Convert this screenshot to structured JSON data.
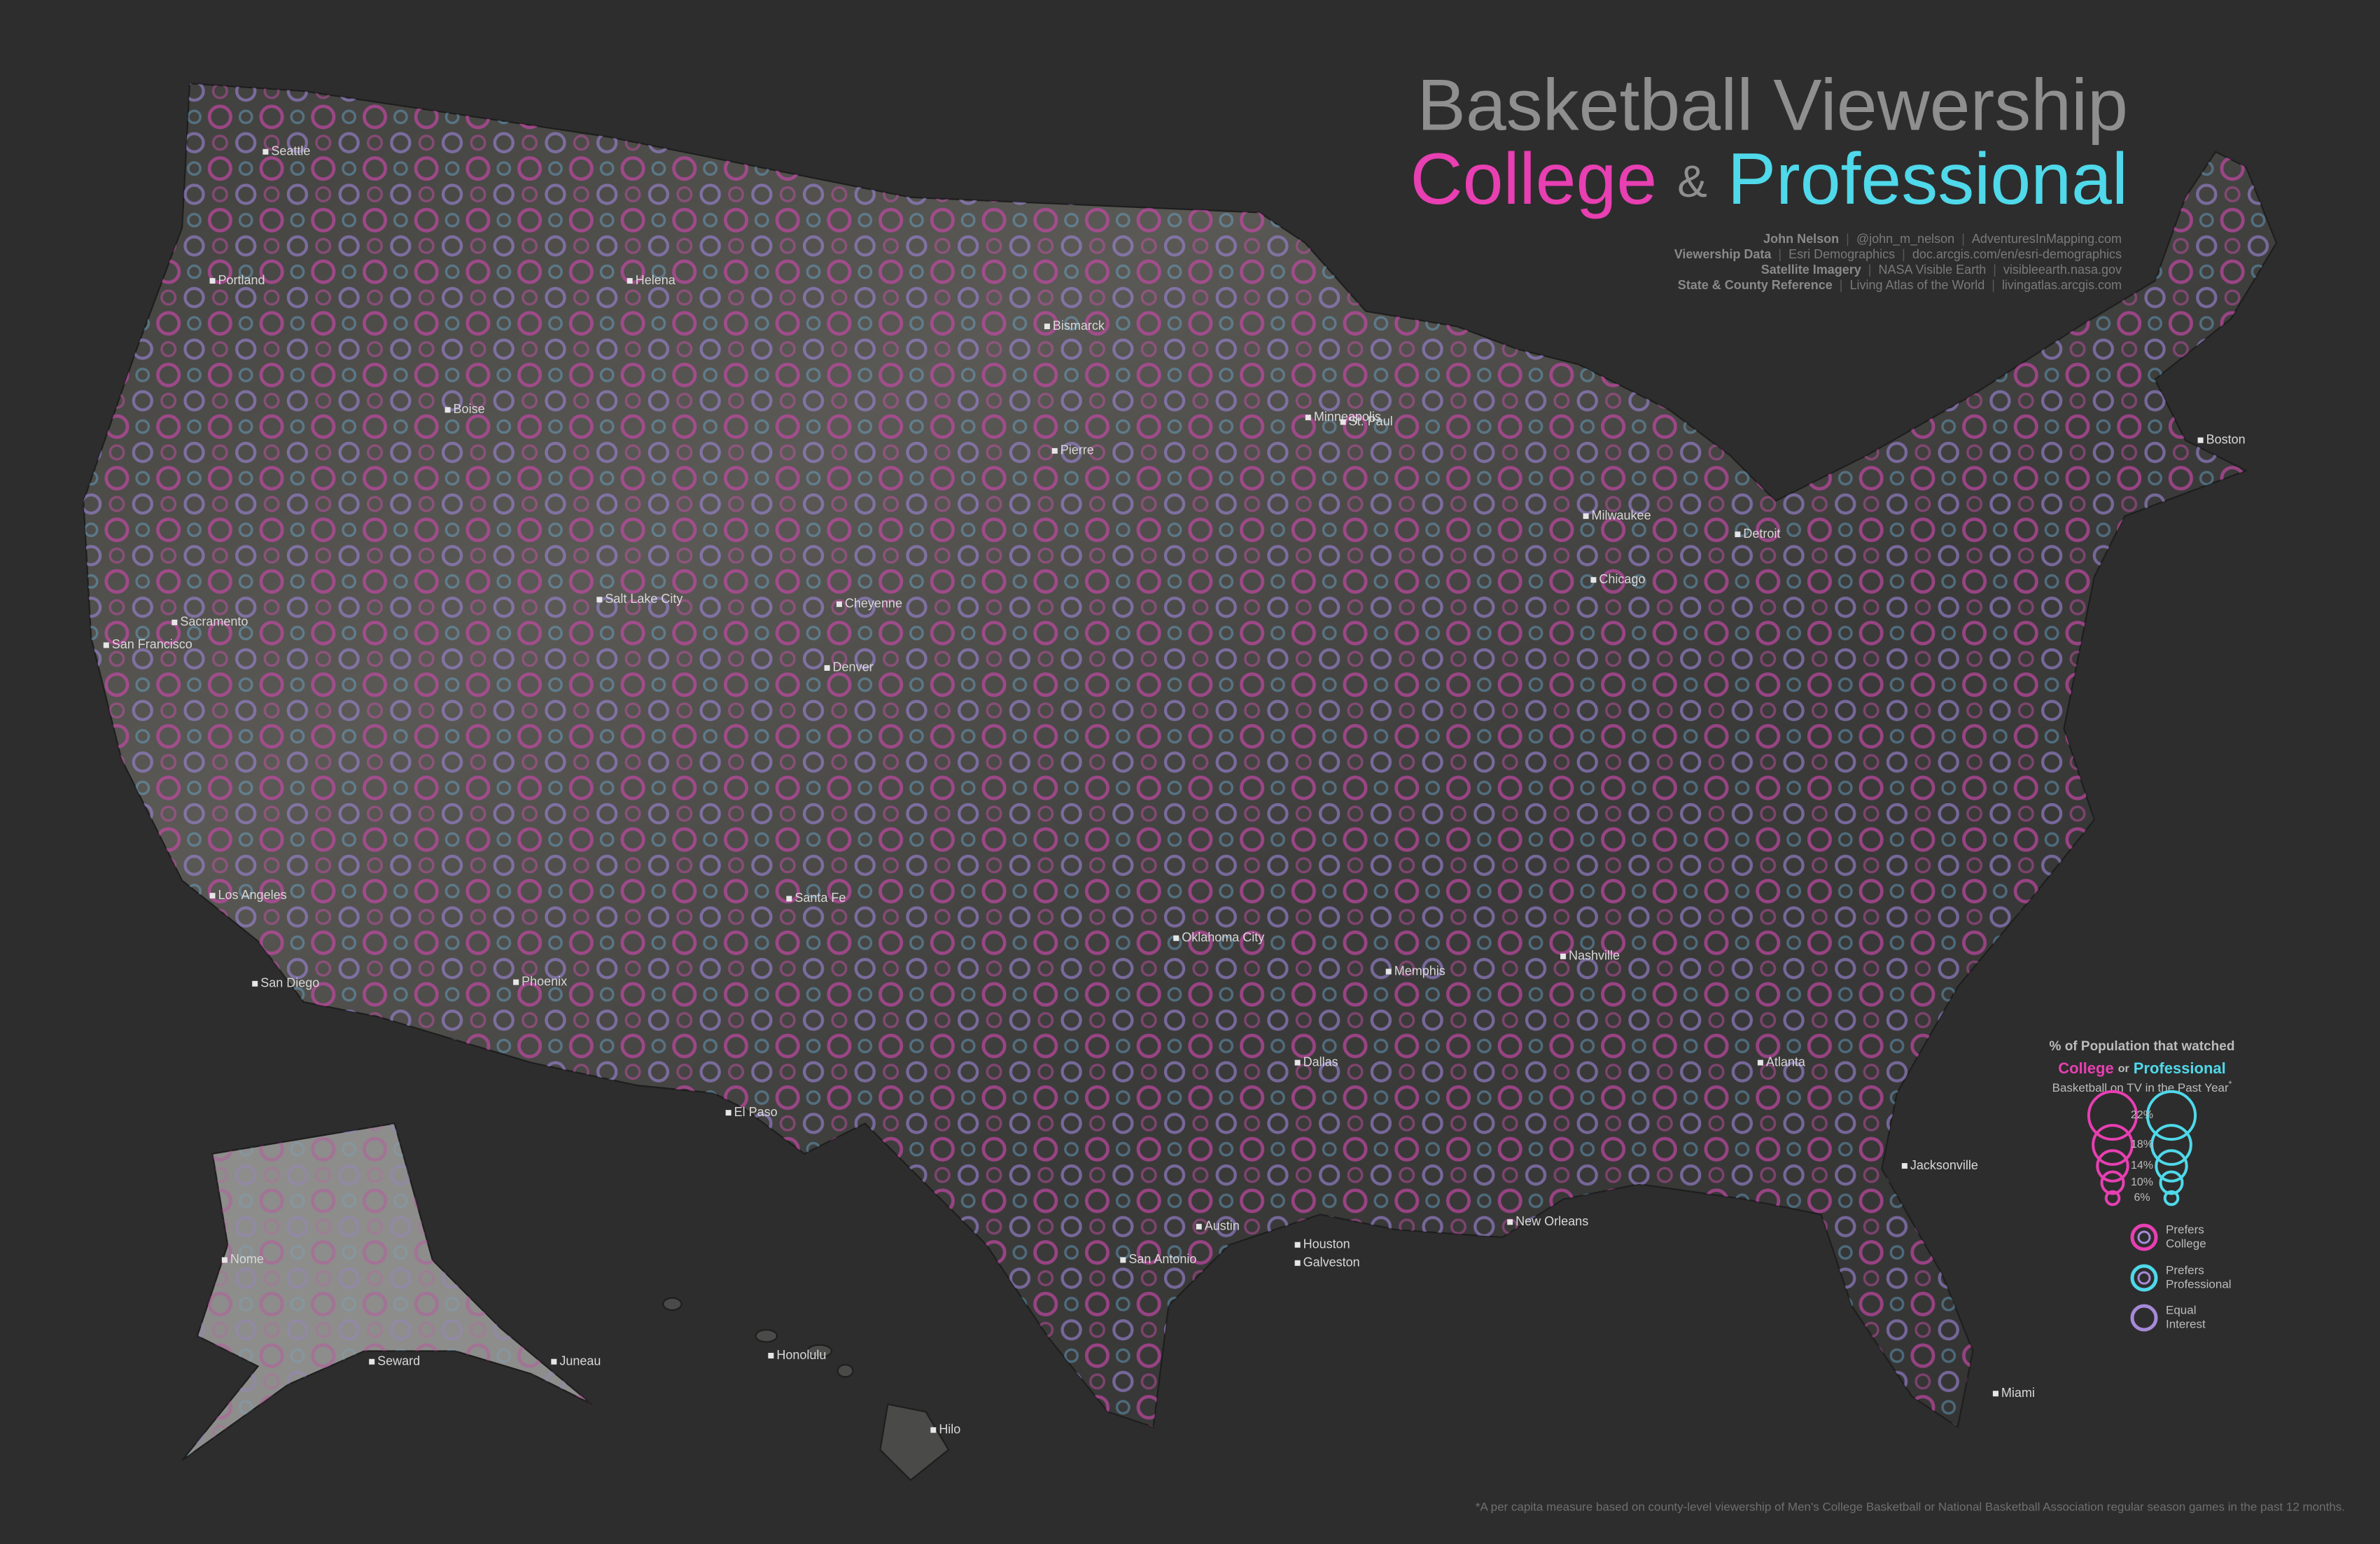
{
  "title": {
    "line1": "Basketball Viewership",
    "college": "College",
    "amp": "&",
    "professional": "Professional"
  },
  "credits": {
    "separator": "|",
    "lines": [
      {
        "label": "John Nelson",
        "items": [
          "@john_m_nelson",
          "AdventuresInMapping.com"
        ]
      },
      {
        "label": "Viewership Data",
        "items": [
          "Esri Demographics",
          "doc.arcgis.com/en/esri-demographics"
        ]
      },
      {
        "label": "Satellite Imagery",
        "items": [
          "NASA Visible Earth",
          "visibleearth.nasa.gov"
        ]
      },
      {
        "label": "State & County Reference",
        "items": [
          "Living Atlas of the World",
          "livingatlas.arcgis.com"
        ]
      }
    ]
  },
  "legend": {
    "heading": "% of Population that watched",
    "college": "College",
    "or": "or",
    "professional": "Professional",
    "subheading": "Basketball on TV in the Past Year",
    "asterisk": "*",
    "college_color": "#e83fb2",
    "professional_color": "#4fd9ea",
    "equal_color": "#a68ad8",
    "sizes": [
      {
        "value": 22,
        "label": "22%"
      },
      {
        "value": 18,
        "label": "18%"
      },
      {
        "value": 14,
        "label": "14%"
      },
      {
        "value": 10,
        "label": "10%"
      },
      {
        "value": 6,
        "label": "6%"
      }
    ],
    "categories": [
      [
        "Prefers",
        "College"
      ],
      [
        "Prefers",
        "Professional"
      ],
      [
        "Equal",
        "Interest"
      ]
    ]
  },
  "cities": [
    "Seattle",
    "Portland",
    "Boise",
    "Helena",
    "Bismarck",
    "Pierre",
    "Minneapolis",
    "St. Paul",
    "Milwaukee",
    "Chicago",
    "Detroit",
    "Boston",
    "San Francisco",
    "Sacramento",
    "Los Angeles",
    "San Diego",
    "Phoenix",
    "Salt Lake City",
    "Cheyenne",
    "Denver",
    "Santa Fe",
    "El Paso",
    "Oklahoma City",
    "Dallas",
    "Houston",
    "Austin",
    "San Antonio",
    "Galveston",
    "New Orleans",
    "Memphis",
    "Nashville",
    "Atlanta",
    "Jacksonville",
    "Miami",
    "Honolulu",
    "Hilo",
    "Nome",
    "Seward",
    "Juneau"
  ],
  "footnote": "*A per capita measure based on county-level viewership of Men's College Basketball or National Basketball Association regular season games in the past 12 months."
}
